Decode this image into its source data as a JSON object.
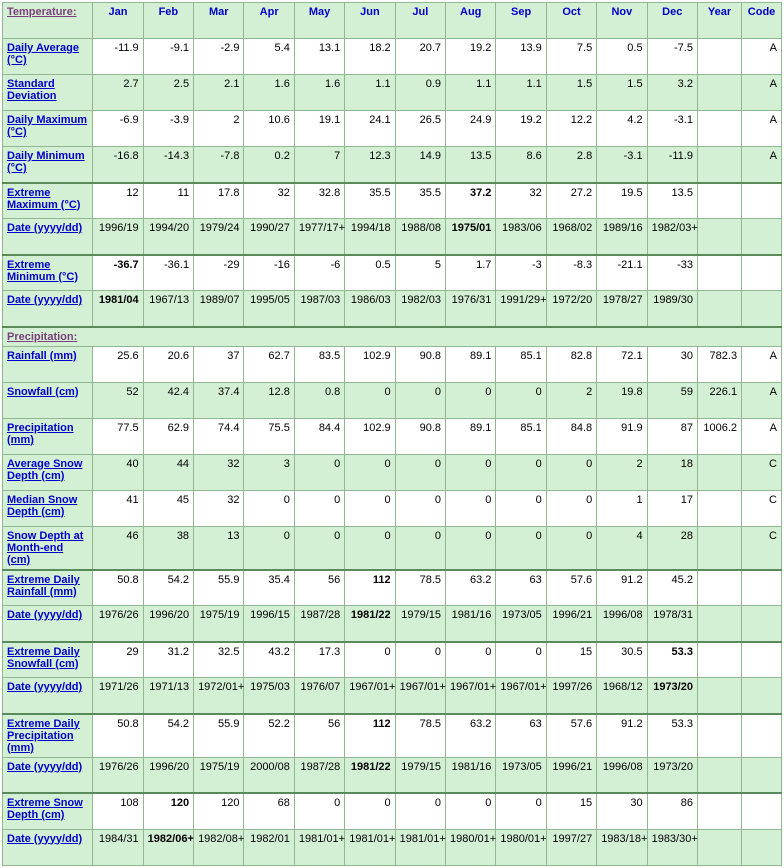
{
  "header": {
    "label_col": "Temperature:",
    "months": [
      "Jan",
      "Feb",
      "Mar",
      "Apr",
      "May",
      "Jun",
      "Jul",
      "Aug",
      "Sep",
      "Oct",
      "Nov",
      "Dec"
    ],
    "year": "Year",
    "code": "Code"
  },
  "temp_rows": [
    {
      "label": "Daily Average (°C)",
      "cls": "white",
      "vals": [
        "-11.9",
        "-9.1",
        "-2.9",
        "5.4",
        "13.1",
        "18.2",
        "20.7",
        "19.2",
        "13.9",
        "7.5",
        "0.5",
        "-7.5",
        "",
        "A"
      ]
    },
    {
      "label": "Standard Deviation",
      "cls": "green",
      "vals": [
        "2.7",
        "2.5",
        "2.1",
        "1.6",
        "1.6",
        "1.1",
        "0.9",
        "1.1",
        "1.1",
        "1.5",
        "1.5",
        "3.2",
        "",
        "A"
      ]
    },
    {
      "label": "Daily Maximum (°C)",
      "cls": "white",
      "vals": [
        "-6.9",
        "-3.9",
        "2",
        "10.6",
        "19.1",
        "24.1",
        "26.5",
        "24.9",
        "19.2",
        "12.2",
        "4.2",
        "-3.1",
        "",
        "A"
      ]
    },
    {
      "label": "Daily Minimum (°C)",
      "cls": "green",
      "vals": [
        "-16.8",
        "-14.3",
        "-7.8",
        "0.2",
        "7",
        "12.3",
        "14.9",
        "13.5",
        "8.6",
        "2.8",
        "-3.1",
        "-11.9",
        "",
        "A"
      ]
    },
    {
      "label": "Extreme Maximum (°C)",
      "cls": "white topline",
      "vals": [
        "12",
        "11",
        "17.8",
        "32",
        "32.8",
        "35.5",
        "35.5",
        "37.2",
        "32",
        "27.2",
        "19.5",
        "13.5",
        "",
        ""
      ],
      "bold_idx": [
        7
      ]
    },
    {
      "label": "Date (yyyy/dd)",
      "cls": "green",
      "vals": [
        "1996/19",
        "1994/20",
        "1979/24",
        "1990/27",
        "1977/17+",
        "1994/18",
        "1988/08",
        "1975/01",
        "1983/06",
        "1968/02",
        "1989/16",
        "1982/03+",
        "",
        ""
      ],
      "bold_idx": [
        7
      ]
    },
    {
      "label": "Extreme Minimum (°C)",
      "cls": "white topline",
      "vals": [
        "-36.7",
        "-36.1",
        "-29",
        "-16",
        "-6",
        "0.5",
        "5",
        "1.7",
        "-3",
        "-8.3",
        "-21.1",
        "-33",
        "",
        ""
      ],
      "bold_idx": [
        0
      ]
    },
    {
      "label": "Date (yyyy/dd)",
      "cls": "green",
      "vals": [
        "1981/04",
        "1967/13",
        "1989/07",
        "1995/05",
        "1987/03",
        "1986/03",
        "1982/03",
        "1976/31",
        "1991/29+",
        "1972/20",
        "1978/27",
        "1989/30",
        "",
        ""
      ],
      "bold_idx": [
        0
      ]
    }
  ],
  "precip_header": "Precipitation:",
  "precip_rows": [
    {
      "label": "Rainfall (mm)",
      "cls": "white",
      "vals": [
        "25.6",
        "20.6",
        "37",
        "62.7",
        "83.5",
        "102.9",
        "90.8",
        "89.1",
        "85.1",
        "82.8",
        "72.1",
        "30",
        "782.3",
        "A"
      ]
    },
    {
      "label": "Snowfall (cm)",
      "cls": "green",
      "vals": [
        "52",
        "42.4",
        "37.4",
        "12.8",
        "0.8",
        "0",
        "0",
        "0",
        "0",
        "2",
        "19.8",
        "59",
        "226.1",
        "A"
      ]
    },
    {
      "label": "Precipitation (mm)",
      "cls": "white",
      "vals": [
        "77.5",
        "62.9",
        "74.4",
        "75.5",
        "84.4",
        "102.9",
        "90.8",
        "89.1",
        "85.1",
        "84.8",
        "91.9",
        "87",
        "1006.2",
        "A"
      ]
    },
    {
      "label": "Average Snow Depth (cm)",
      "cls": "green",
      "vals": [
        "40",
        "44",
        "32",
        "3",
        "0",
        "0",
        "0",
        "0",
        "0",
        "0",
        "2",
        "18",
        "",
        "C"
      ]
    },
    {
      "label": "Median Snow Depth (cm)",
      "cls": "white",
      "vals": [
        "41",
        "45",
        "32",
        "0",
        "0",
        "0",
        "0",
        "0",
        "0",
        "0",
        "1",
        "17",
        "",
        "C"
      ]
    },
    {
      "label": "Snow Depth at Month-end (cm)",
      "cls": "green",
      "vals": [
        "46",
        "38",
        "13",
        "0",
        "0",
        "0",
        "0",
        "0",
        "0",
        "0",
        "4",
        "28",
        "",
        "C"
      ]
    },
    {
      "label": "Extreme Daily Rainfall (mm)",
      "cls": "white topline",
      "vals": [
        "50.8",
        "54.2",
        "55.9",
        "35.4",
        "56",
        "112",
        "78.5",
        "63.2",
        "63",
        "57.6",
        "91.2",
        "45.2",
        "",
        ""
      ],
      "bold_idx": [
        5
      ]
    },
    {
      "label": "Date (yyyy/dd)",
      "cls": "green",
      "vals": [
        "1976/26",
        "1996/20",
        "1975/19",
        "1996/15",
        "1987/28",
        "1981/22",
        "1979/15",
        "1981/16",
        "1973/05",
        "1996/21",
        "1996/08",
        "1978/31",
        "",
        ""
      ],
      "bold_idx": [
        5
      ]
    },
    {
      "label": "Extreme Daily Snowfall (cm)",
      "cls": "white topline",
      "vals": [
        "29",
        "31.2",
        "32.5",
        "43.2",
        "17.3",
        "0",
        "0",
        "0",
        "0",
        "15",
        "30.5",
        "53.3",
        "",
        ""
      ],
      "bold_idx": [
        11
      ]
    },
    {
      "label": "Date (yyyy/dd)",
      "cls": "green",
      "vals": [
        "1971/26",
        "1971/13",
        "1972/01+",
        "1975/03",
        "1976/07",
        "1967/01+",
        "1967/01+",
        "1967/01+",
        "1967/01+",
        "1997/26",
        "1968/12",
        "1973/20",
        "",
        ""
      ],
      "bold_idx": [
        11
      ]
    },
    {
      "label": "Extreme Daily Precipitation (mm)",
      "cls": "white topline",
      "vals": [
        "50.8",
        "54.2",
        "55.9",
        "52.2",
        "56",
        "112",
        "78.5",
        "63.2",
        "63",
        "57.6",
        "91.2",
        "53.3",
        "",
        ""
      ],
      "bold_idx": [
        5
      ]
    },
    {
      "label": "Date (yyyy/dd)",
      "cls": "green",
      "vals": [
        "1976/26",
        "1996/20",
        "1975/19",
        "2000/08",
        "1987/28",
        "1981/22",
        "1979/15",
        "1981/16",
        "1973/05",
        "1996/21",
        "1996/08",
        "1973/20",
        "",
        ""
      ],
      "bold_idx": [
        5
      ]
    },
    {
      "label": "Extreme Snow Depth (cm)",
      "cls": "white topline",
      "vals": [
        "108",
        "120",
        "120",
        "68",
        "0",
        "0",
        "0",
        "0",
        "0",
        "15",
        "30",
        "86",
        "",
        ""
      ],
      "bold_idx": [
        1
      ]
    },
    {
      "label": "Date (yyyy/dd)",
      "cls": "green",
      "vals": [
        "1984/31",
        "1982/06+",
        "1982/08+",
        "1982/01",
        "1981/01+",
        "1981/01+",
        "1981/01+",
        "1980/01+",
        "1980/01+",
        "1997/27",
        "1983/18+",
        "1983/30+",
        "",
        ""
      ],
      "bold_idx": [
        1
      ]
    }
  ]
}
